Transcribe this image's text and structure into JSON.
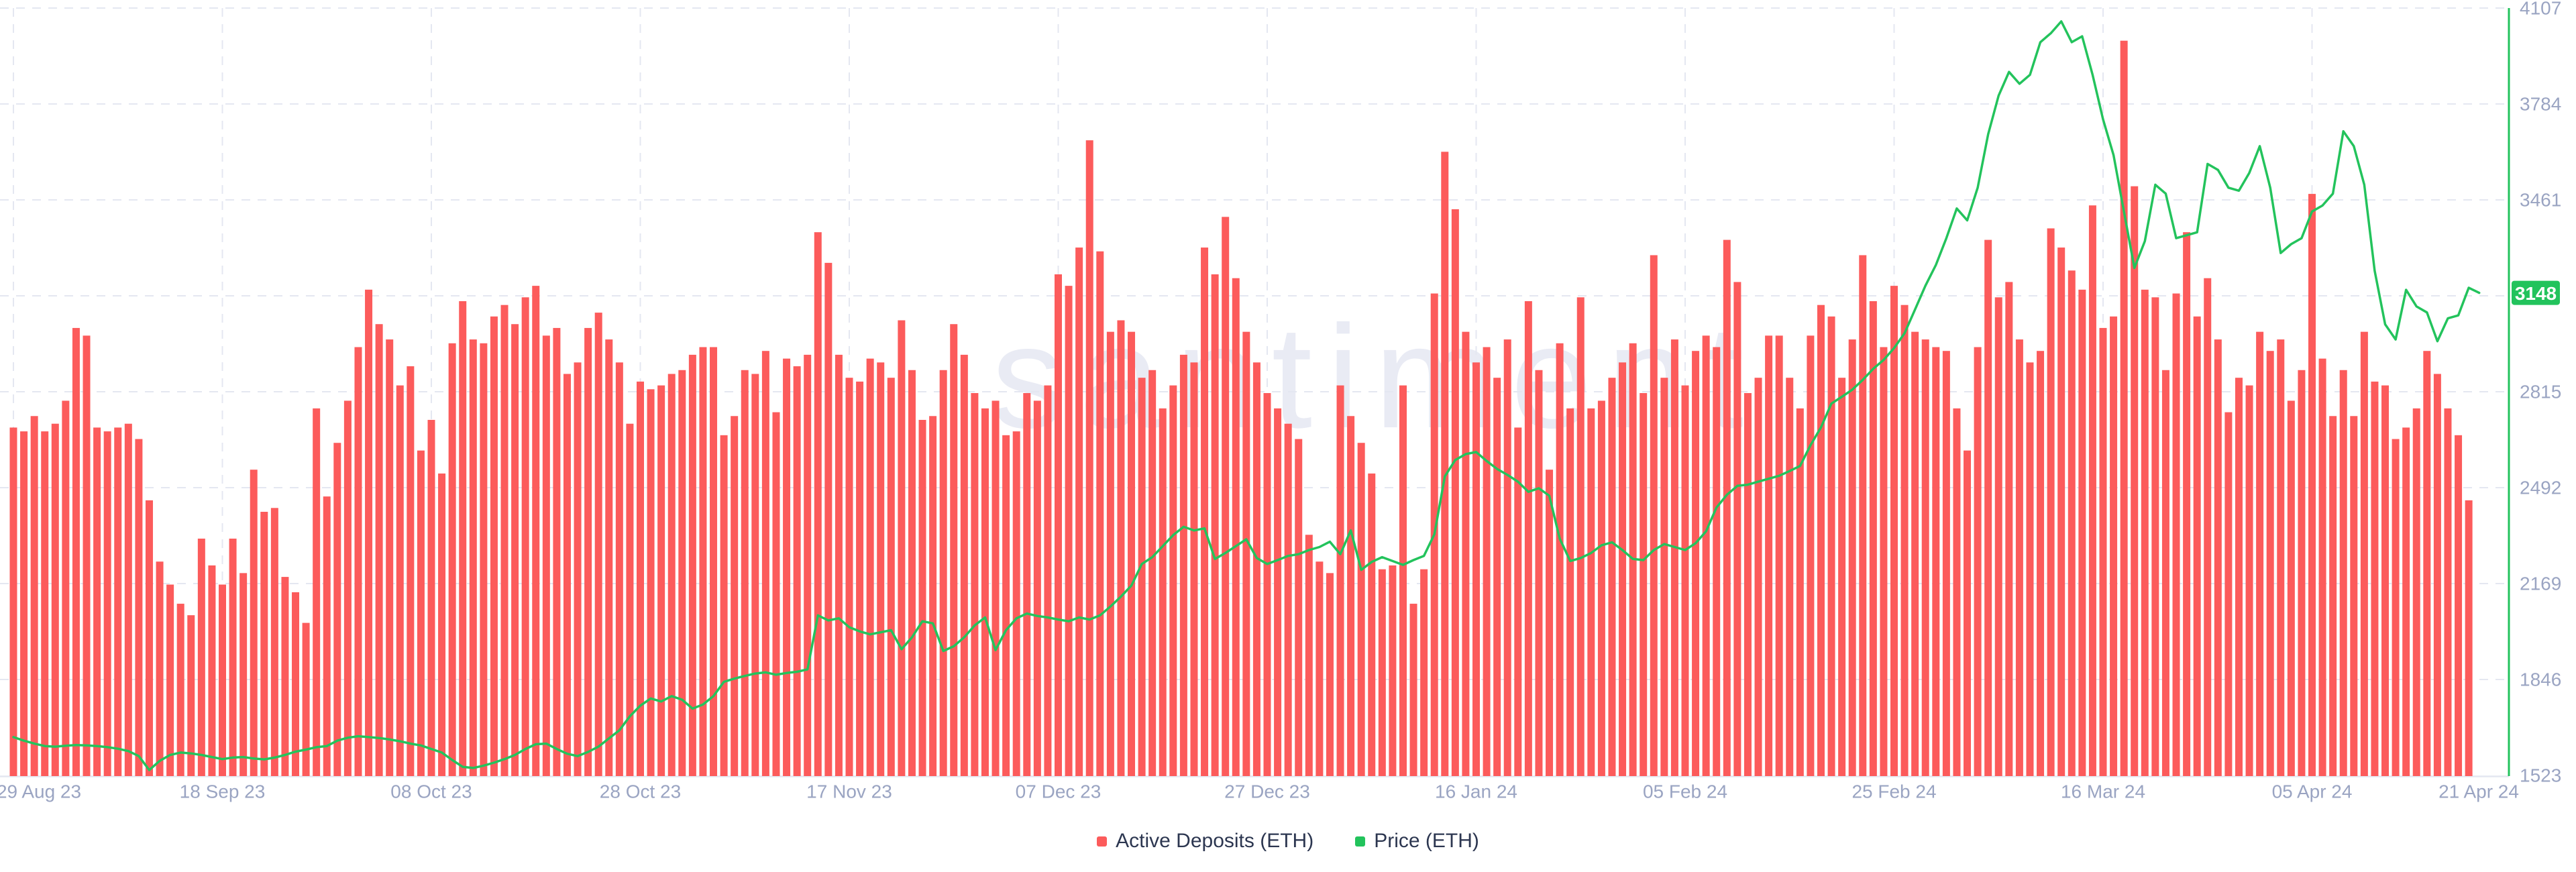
{
  "watermark": "santiment",
  "colors": {
    "bar_red": "#fc5b5b",
    "line_green": "#23c35c",
    "badge_green": "#22c35c",
    "grid": "#e4e7f1",
    "axis_label": "#9aa4c2",
    "legend_text": "#2c3650",
    "watermark": "#e9ebf4",
    "background": "#ffffff"
  },
  "legend": {
    "items": [
      {
        "label": "Active Deposits (ETH)",
        "color": "#fc5b5b"
      },
      {
        "label": "Price (ETH)",
        "color": "#22c35c"
      }
    ]
  },
  "chart_data": {
    "type": "bar",
    "title": "",
    "xlabel": "",
    "ylabel": "",
    "x_tick_labels": [
      "29 Aug 23",
      "18 Sep 23",
      "08 Oct 23",
      "28 Oct 23",
      "17 Nov 23",
      "07 Dec 23",
      "27 Dec 23",
      "16 Jan 24",
      "05 Feb 24",
      "25 Feb 24",
      "16 Mar 24",
      "05 Apr 24",
      "21 Apr 24"
    ],
    "x_tick_day_offsets": [
      0,
      20,
      40,
      60,
      80,
      100,
      120,
      140,
      160,
      180,
      200,
      220,
      236
    ],
    "right_axis": {
      "tick_labels": [
        "4107",
        "3784",
        "3461",
        "2815",
        "2492",
        "2169",
        "1846",
        "1523"
      ],
      "tick_values": [
        4107,
        3784,
        3461,
        2815,
        2492,
        2169,
        1846,
        1523
      ],
      "min": 1523,
      "max": 4107,
      "current_value_badge": "3148"
    },
    "layout": {
      "grid": "dashed",
      "legend_position": "bottom-center",
      "left_axis_visible": false
    },
    "series": [
      {
        "name": "Active Deposits (ETH)",
        "type": "bar",
        "color": "#fc5b5b",
        "axis": "hidden-left",
        "unit": "percent-of-plot-height",
        "values": [
          45.5,
          45,
          47,
          45,
          46,
          49,
          58.5,
          57.5,
          45.5,
          45,
          45.5,
          46,
          44,
          36,
          28,
          25,
          22.5,
          21,
          31,
          27.5,
          25,
          31,
          26.5,
          40,
          34.5,
          35,
          26,
          24,
          20,
          48,
          36.5,
          43.5,
          49,
          56,
          63.5,
          59,
          57,
          51,
          53.5,
          42.5,
          46.5,
          39.5,
          56.5,
          62,
          57,
          56.5,
          60,
          61.5,
          59,
          62.5,
          64,
          57.5,
          58.5,
          52.5,
          54,
          58.5,
          60.5,
          57,
          54,
          46,
          51.5,
          50.5,
          51,
          52.5,
          53,
          55,
          56,
          56,
          44.5,
          47,
          53,
          52.5,
          55.5,
          47.5,
          54.5,
          53.5,
          55,
          71,
          67,
          55,
          52,
          51.5,
          54.5,
          54,
          52,
          59.5,
          53,
          46.5,
          47,
          53,
          59,
          55,
          50,
          48,
          49,
          44.5,
          45,
          50,
          49,
          51,
          65.5,
          64,
          69,
          83,
          68.5,
          58,
          59.5,
          58,
          52,
          53,
          48,
          51,
          55,
          54,
          69,
          65.5,
          73,
          65,
          58,
          54,
          50,
          48,
          46,
          44,
          31.5,
          28,
          26.5,
          51,
          47,
          43.5,
          39.5,
          27,
          27.5,
          51,
          22.5,
          27,
          63,
          81.5,
          74,
          58,
          54,
          56,
          52,
          57,
          45.5,
          62,
          53,
          40,
          56.5,
          48,
          62.5,
          48,
          49,
          52,
          54,
          56.5,
          50,
          68,
          52,
          57,
          51,
          55.5,
          57.5,
          56,
          70,
          64.5,
          50,
          52,
          57.5,
          57.5,
          52,
          48,
          57.5,
          61.5,
          60,
          52,
          57,
          68,
          62,
          56,
          64,
          61.5,
          58,
          57,
          56,
          55.5,
          48,
          42.5,
          56,
          70,
          62.5,
          64.5,
          57,
          54,
          55.5,
          71.5,
          69,
          66,
          63.5,
          74.5,
          58.5,
          60,
          96,
          77,
          63.5,
          62.5,
          53,
          63,
          71,
          60,
          65,
          57,
          47.5,
          52,
          51,
          58,
          55.5,
          57,
          49,
          53,
          76,
          54.5,
          47,
          53,
          47,
          58,
          51.5,
          51,
          44,
          45.5,
          48,
          55.5,
          52.5,
          48,
          44.5,
          36
        ]
      },
      {
        "name": "Price (ETH)",
        "type": "line",
        "color": "#23c35c",
        "axis": "right",
        "values": [
          1652,
          1640,
          1630,
          1622,
          1620,
          1623,
          1625,
          1624,
          1622,
          1618,
          1613,
          1605,
          1588,
          1541,
          1572,
          1592,
          1600,
          1597,
          1592,
          1585,
          1578,
          1583,
          1585,
          1580,
          1577,
          1583,
          1592,
          1603,
          1610,
          1618,
          1622,
          1640,
          1650,
          1655,
          1652,
          1649,
          1644,
          1638,
          1630,
          1624,
          1612,
          1600,
          1575,
          1552,
          1548,
          1556,
          1566,
          1578,
          1592,
          1612,
          1628,
          1630,
          1612,
          1596,
          1588,
          1602,
          1620,
          1648,
          1675,
          1722,
          1758,
          1782,
          1772,
          1790,
          1778,
          1748,
          1762,
          1790,
          1838,
          1849,
          1858,
          1866,
          1870,
          1862,
          1868,
          1872,
          1880,
          2062,
          2045,
          2052,
          2022,
          2008,
          1998,
          2005,
          2012,
          1948,
          1988,
          2042,
          2035,
          1942,
          1958,
          1988,
          2028,
          2055,
          1945,
          2012,
          2052,
          2068,
          2060,
          2055,
          2048,
          2042,
          2055,
          2048,
          2062,
          2092,
          2125,
          2162,
          2235,
          2258,
          2295,
          2332,
          2360,
          2348,
          2355,
          2252,
          2272,
          2295,
          2318,
          2255,
          2235,
          2248,
          2262,
          2268,
          2282,
          2292,
          2310,
          2268,
          2348,
          2215,
          2242,
          2258,
          2245,
          2232,
          2248,
          2262,
          2335,
          2530,
          2585,
          2605,
          2612,
          2582,
          2555,
          2535,
          2512,
          2478,
          2490,
          2465,
          2320,
          2245,
          2255,
          2272,
          2298,
          2308,
          2282,
          2252,
          2248,
          2282,
          2302,
          2292,
          2282,
          2305,
          2345,
          2425,
          2468,
          2498,
          2502,
          2512,
          2522,
          2532,
          2548,
          2565,
          2635,
          2695,
          2775,
          2798,
          2822,
          2855,
          2892,
          2922,
          2962,
          3012,
          3092,
          3172,
          3242,
          3332,
          3432,
          3392,
          3502,
          3682,
          3812,
          3892,
          3852,
          3882,
          3992,
          4022,
          4062,
          3992,
          4012,
          3882,
          3732,
          3612,
          3422,
          3232,
          3322,
          3512,
          3482,
          3332,
          3342,
          3352,
          3582,
          3562,
          3502,
          3492,
          3552,
          3642,
          3502,
          3282,
          3312,
          3332,
          3422,
          3442,
          3482,
          3692,
          3642,
          3512,
          3222,
          3042,
          2991,
          3158,
          3102,
          3082,
          2985,
          3062,
          3072,
          3165,
          3148
        ]
      }
    ]
  }
}
